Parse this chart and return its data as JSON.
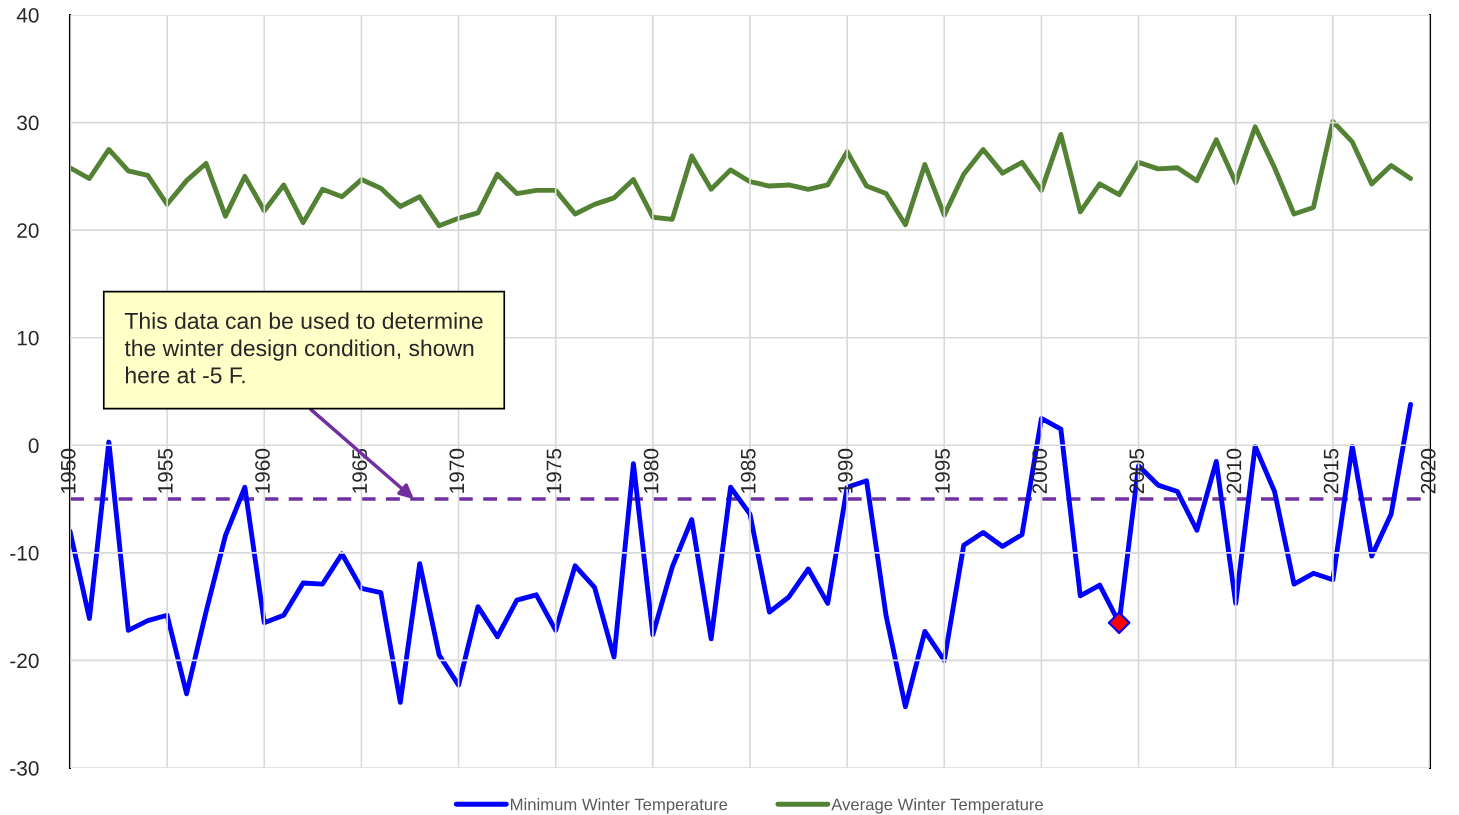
{
  "chart_data": {
    "type": "line",
    "x": [
      1950,
      1951,
      1952,
      1953,
      1954,
      1955,
      1956,
      1957,
      1958,
      1959,
      1960,
      1961,
      1962,
      1963,
      1964,
      1965,
      1966,
      1967,
      1968,
      1969,
      1970,
      1971,
      1972,
      1973,
      1974,
      1975,
      1976,
      1977,
      1978,
      1979,
      1980,
      1981,
      1982,
      1983,
      1984,
      1985,
      1986,
      1987,
      1988,
      1989,
      1990,
      1991,
      1992,
      1993,
      1994,
      1995,
      1996,
      1997,
      1998,
      1999,
      2000,
      2001,
      2002,
      2003,
      2004,
      2005,
      2006,
      2007,
      2008,
      2009,
      2010,
      2011,
      2012,
      2013,
      2014,
      2015,
      2016,
      2017,
      2018,
      2019
    ],
    "series": [
      {
        "name": "Minimum Winter Temperature",
        "color": "#0000ff",
        "values": [
          -8.0,
          -16.1,
          0.3,
          -17.2,
          -16.3,
          -15.8,
          -23.1,
          -15.5,
          -8.4,
          -3.9,
          -16.5,
          -15.8,
          -12.8,
          -12.9,
          -10.1,
          -13.3,
          -13.7,
          -23.9,
          -11.0,
          -19.5,
          -22.3,
          -15.0,
          -17.8,
          -14.4,
          -13.9,
          -17.2,
          -11.2,
          -13.2,
          -19.7,
          -1.7,
          -17.6,
          -11.3,
          -6.9,
          -18.0,
          -3.9,
          -6.4,
          -15.5,
          -14.1,
          -11.5,
          -14.7,
          -3.9,
          -3.3,
          -15.8,
          -24.3,
          -17.3,
          -20.0,
          -9.3,
          -8.1,
          -9.4,
          -8.3,
          2.5,
          1.5,
          -14.0,
          -13.0,
          -16.5,
          -1.9,
          -3.7,
          -4.3,
          -7.9,
          -1.5,
          -14.7,
          -0.1,
          -4.3,
          -12.9,
          -11.9,
          -12.5,
          -0.1,
          -10.3,
          -6.4,
          3.8
        ]
      },
      {
        "name": "Average Winter Temperature",
        "color": "#548235",
        "values": [
          25.8,
          24.8,
          27.5,
          25.5,
          25.1,
          22.4,
          24.6,
          26.2,
          21.3,
          25.0,
          21.8,
          24.2,
          20.7,
          23.8,
          23.1,
          24.7,
          23.9,
          22.2,
          23.1,
          20.4,
          21.1,
          21.6,
          25.2,
          23.4,
          23.7,
          23.7,
          21.5,
          22.4,
          23.0,
          24.7,
          21.2,
          21.0,
          26.9,
          23.8,
          25.6,
          24.5,
          24.1,
          24.2,
          23.8,
          24.2,
          27.3,
          24.1,
          23.4,
          20.5,
          26.1,
          21.4,
          25.2,
          27.5,
          25.3,
          26.3,
          23.7,
          28.9,
          21.7,
          24.3,
          23.3,
          26.3,
          25.7,
          25.8,
          24.6,
          28.4,
          24.4,
          29.6,
          25.8,
          21.5,
          22.1,
          30.1,
          28.2,
          24.3,
          26.0,
          24.8
        ]
      },
      {
        "type": "scatter",
        "x": [
          2004
        ],
        "values": [
          -16.5
        ],
        "color": "#ff0000",
        "marker": "diamond"
      }
    ],
    "xlim": [
      1950,
      2020
    ],
    "xticks": [
      1950,
      1955,
      1960,
      1965,
      1970,
      1975,
      1980,
      1985,
      1990,
      1995,
      2000,
      2005,
      2010,
      2015,
      2020
    ],
    "ylim": [
      -30,
      40
    ],
    "yticks": [
      -30,
      -20,
      -10,
      0,
      10,
      20,
      30,
      40
    ],
    "grid": true,
    "legend": "bottom",
    "ref_lines": [
      {
        "axis": "y",
        "value": -5,
        "color": "#7030a0",
        "line_style": "dashed"
      }
    ],
    "annotations": [
      {
        "text": "This data can be used to determine\nthe winter design condition, shown\nhere at -5 F.",
        "x": 1967.7,
        "y": -5
      }
    ]
  }
}
